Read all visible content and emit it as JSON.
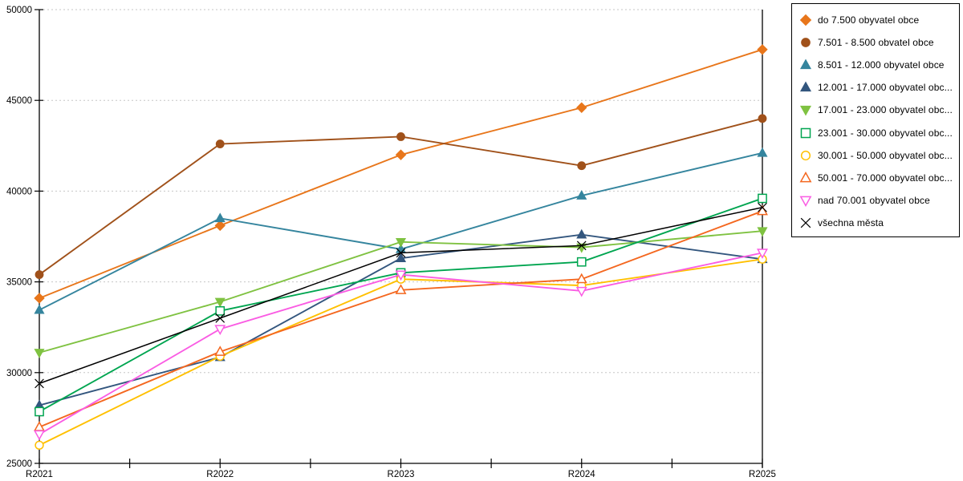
{
  "chart_data": {
    "type": "line",
    "title": "",
    "xlabel": "",
    "ylabel": "",
    "x_labels": [
      "R2021",
      "R2022",
      "R2023",
      "R2024",
      "R2025"
    ],
    "y_tick_labels": [
      "25000",
      "30000",
      "35000",
      "40000",
      "45000",
      "50000"
    ],
    "ylim": [
      25000,
      50000
    ],
    "grid": "horizontal-dashed",
    "gridline_color": "#c6c6c6",
    "axis_color": "#000000",
    "legend_position": "right",
    "series": [
      {
        "label": "do 7.500 obyvatel obce",
        "color": "#E8761B",
        "marker": "diamond",
        "fill": "filled",
        "values": [
          34100,
          38100,
          42000,
          44600,
          47800
        ]
      },
      {
        "label": "7.501 - 8.500 obvatel obce",
        "color": "#A0511A",
        "marker": "circle",
        "fill": "filled",
        "values": [
          35400,
          42600,
          43000,
          41400,
          44000
        ]
      },
      {
        "label": "8.501 - 12.000 obyvatel obce",
        "color": "#35859E",
        "marker": "triangle-up",
        "fill": "filled",
        "values": [
          33450,
          38500,
          36800,
          39750,
          42100
        ]
      },
      {
        "label": "12.001 - 17.000 obyvatel obc...",
        "color": "#33567E",
        "marker": "triangle-up",
        "fill": "filled",
        "values": [
          28200,
          30850,
          36300,
          37600,
          36250
        ]
      },
      {
        "label": "17.001 - 23.000 obyvatel obc...",
        "color": "#7FC241",
        "marker": "triangle-down",
        "fill": "filled",
        "values": [
          31100,
          33900,
          37200,
          36900,
          37800
        ]
      },
      {
        "label": "23.001 - 30.000 obyvatel obc...",
        "color": "#00A550",
        "marker": "square",
        "fill": "open",
        "values": [
          27850,
          33400,
          35500,
          36100,
          39600
        ]
      },
      {
        "label": "30.001 - 50.000 obyvatel obc...",
        "color": "#FFC000",
        "marker": "circle",
        "fill": "open",
        "values": [
          26000,
          30900,
          35150,
          34800,
          36250
        ]
      },
      {
        "label": "50.001 - 70.000 obyvatel obc...",
        "color": "#F4671F",
        "marker": "triangle-up",
        "fill": "open",
        "values": [
          27000,
          31150,
          34550,
          35150,
          38900
        ]
      },
      {
        "label": "nad 70.001 obyvatel obce",
        "color": "#FA5CE3",
        "marker": "triangle-down",
        "fill": "open",
        "values": [
          26600,
          32400,
          35400,
          34500,
          36600
        ]
      },
      {
        "label": "všechna města",
        "color": "#000000",
        "marker": "x",
        "fill": "line",
        "values": [
          29400,
          33000,
          36600,
          37000,
          39100
        ]
      }
    ]
  }
}
